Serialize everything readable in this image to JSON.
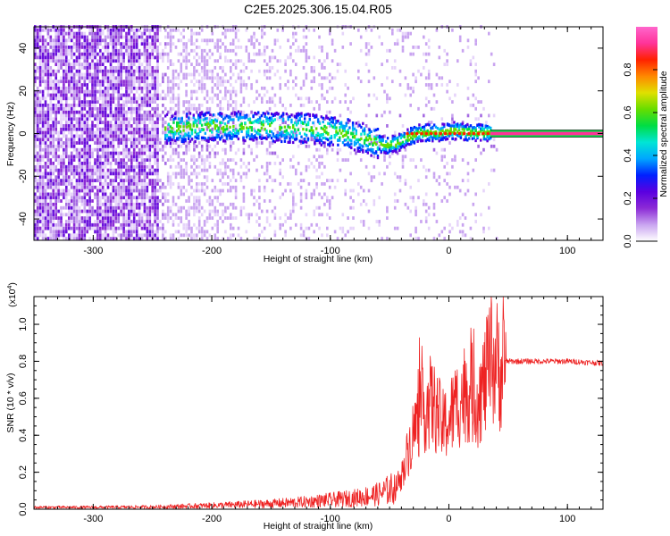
{
  "title": "C2E5.2025.306.15.04.R05",
  "chart_data": [
    {
      "type": "heatmap",
      "name": "spectrogram",
      "xlabel": "Height of straight line (km)",
      "ylabel": "Frequency (Hz)",
      "xlim": [
        -350,
        130
      ],
      "ylim": [
        -50,
        50
      ],
      "x_ticks": [
        -300,
        -200,
        -100,
        0,
        100
      ],
      "x_tick_labels": [
        "-300",
        "-200",
        "-100",
        "0",
        "100"
      ],
      "y_ticks": [
        -40,
        -20,
        0,
        20,
        40
      ],
      "y_tick_labels": [
        "-40",
        "-20",
        "0",
        "20",
        "40"
      ],
      "colorbar": {
        "label": "Normalized spectral amplitude",
        "range": [
          0,
          1
        ],
        "ticks": [
          0.0,
          0.2,
          0.4,
          0.6,
          0.8
        ],
        "tick_labels": [
          "0.0",
          "0.2",
          "0.4",
          "0.6",
          "0.8"
        ],
        "colors": [
          "#ffffff",
          "#c9a4f0",
          "#8c2bd6",
          "#5a00e0",
          "#0020ff",
          "#00a6ff",
          "#00e5d5",
          "#00dd44",
          "#66dd00",
          "#e0e000",
          "#ff8800",
          "#ff2200",
          "#ff3399",
          "#ff66cc"
        ]
      },
      "ridge": {
        "x": [
          -240,
          -200,
          -160,
          -120,
          -90,
          -70,
          -55,
          -45,
          -35,
          -25,
          -10,
          5,
          20,
          35,
          130
        ],
        "y": [
          2,
          3,
          3,
          2,
          0,
          -3,
          -6,
          -5,
          -2,
          0,
          0,
          1,
          0,
          0,
          0
        ]
      },
      "flat_line_from_x": 35,
      "grid": false
    },
    {
      "type": "line",
      "name": "snr",
      "xlabel": "Height of straight line (km)",
      "ylabel": "SNR (10 * v/v)",
      "y_multiplier_label": "(x10",
      "y_multiplier_exp": "4",
      "y_multiplier_close": ")",
      "xlim": [
        -350,
        130
      ],
      "ylim": [
        0,
        1.15
      ],
      "x_ticks": [
        -300,
        -200,
        -100,
        0,
        100
      ],
      "x_tick_labels": [
        "-300",
        "-200",
        "-100",
        "0",
        "100"
      ],
      "y_ticks": [
        0.0,
        0.2,
        0.4,
        0.6,
        0.8,
        1.0
      ],
      "y_tick_labels": [
        "0.0",
        "0.2",
        "0.4",
        "0.6",
        "0.8",
        "1.0"
      ],
      "series_color": "#ee2222",
      "envelope": {
        "x": [
          -350,
          -300,
          -250,
          -200,
          -150,
          -120,
          -100,
          -80,
          -60,
          -45,
          -40,
          -35,
          -30,
          -25,
          -20,
          -15,
          -10,
          -5,
          0,
          5,
          10,
          15,
          20,
          25,
          30,
          35,
          40,
          45,
          48,
          60,
          80,
          100,
          130
        ],
        "y": [
          0.01,
          0.01,
          0.012,
          0.02,
          0.03,
          0.04,
          0.05,
          0.06,
          0.08,
          0.12,
          0.18,
          0.3,
          0.42,
          0.5,
          0.55,
          0.58,
          0.52,
          0.45,
          0.48,
          0.55,
          0.6,
          0.65,
          0.62,
          0.6,
          0.68,
          0.78,
          0.8,
          0.72,
          0.8,
          0.8,
          0.8,
          0.8,
          0.79
        ]
      },
      "grid": false
    }
  ]
}
